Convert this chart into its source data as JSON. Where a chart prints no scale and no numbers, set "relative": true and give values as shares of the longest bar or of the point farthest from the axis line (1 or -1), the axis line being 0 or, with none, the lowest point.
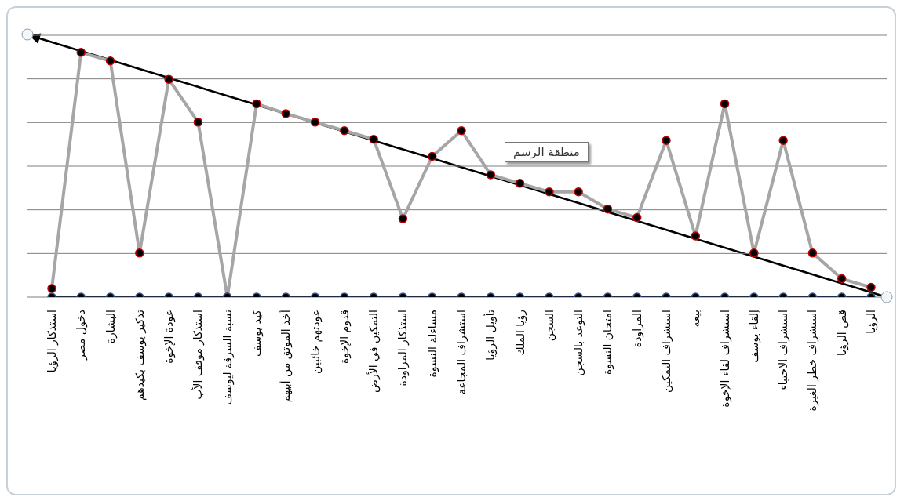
{
  "chart_data": {
    "type": "line",
    "relative": true,
    "grid": true,
    "marker": "circle",
    "line_style": "solid",
    "categories": [
      "استذكار الرؤيا",
      "دخول مصر",
      "البشارة",
      "تذكير يوسف بكيدهم",
      "عودة الإخوة",
      "استذكار موقف الأب",
      "نسبة السرقة ليوسف",
      "كيد يوسف",
      "أخذ الموثق من أبيهم",
      "عودتهم خائبين",
      "قدوم الإخوة",
      "التمكين في الأرض",
      "استذكار المراودة",
      "مساءلة النسوة",
      "استشراف المجاعة",
      "تأويل الرؤيا",
      "رؤيا الملك",
      "السجن",
      "التوعد بالسجن",
      "امتحان النسوة",
      "المراودة",
      "استشراف التمكين",
      "بيعه",
      "استشراف لقاء الإخوة",
      "إلقاء يوسف",
      "استشراف الاجتباء",
      "استشراف خطر الغيرة",
      "قص الرؤيا",
      "الرؤيا"
    ],
    "series": [
      {
        "color": "#a6a6a6",
        "values": [
          0.035,
          1,
          0.965,
          0.18,
          0.89,
          0.715,
          0,
          0.79,
          0.75,
          0.715,
          0.68,
          0.645,
          0.32,
          0.575,
          0.68,
          0.5,
          0.465,
          0.43,
          0.43,
          0.36,
          0.325,
          0.64,
          0.25,
          0.79,
          0.18,
          0.64,
          0.18,
          0.075,
          0.04
        ]
      },
      {
        "color": "#1f2a44",
        "values": [
          0,
          0,
          0,
          0,
          0,
          0,
          0,
          0,
          0,
          0,
          0,
          0,
          0,
          0,
          0,
          0,
          0,
          0,
          0,
          0,
          0,
          0,
          0,
          0,
          0,
          0,
          0,
          0,
          0
        ]
      }
    ],
    "annotations": [
      "منطقة الرسم"
    ]
  }
}
